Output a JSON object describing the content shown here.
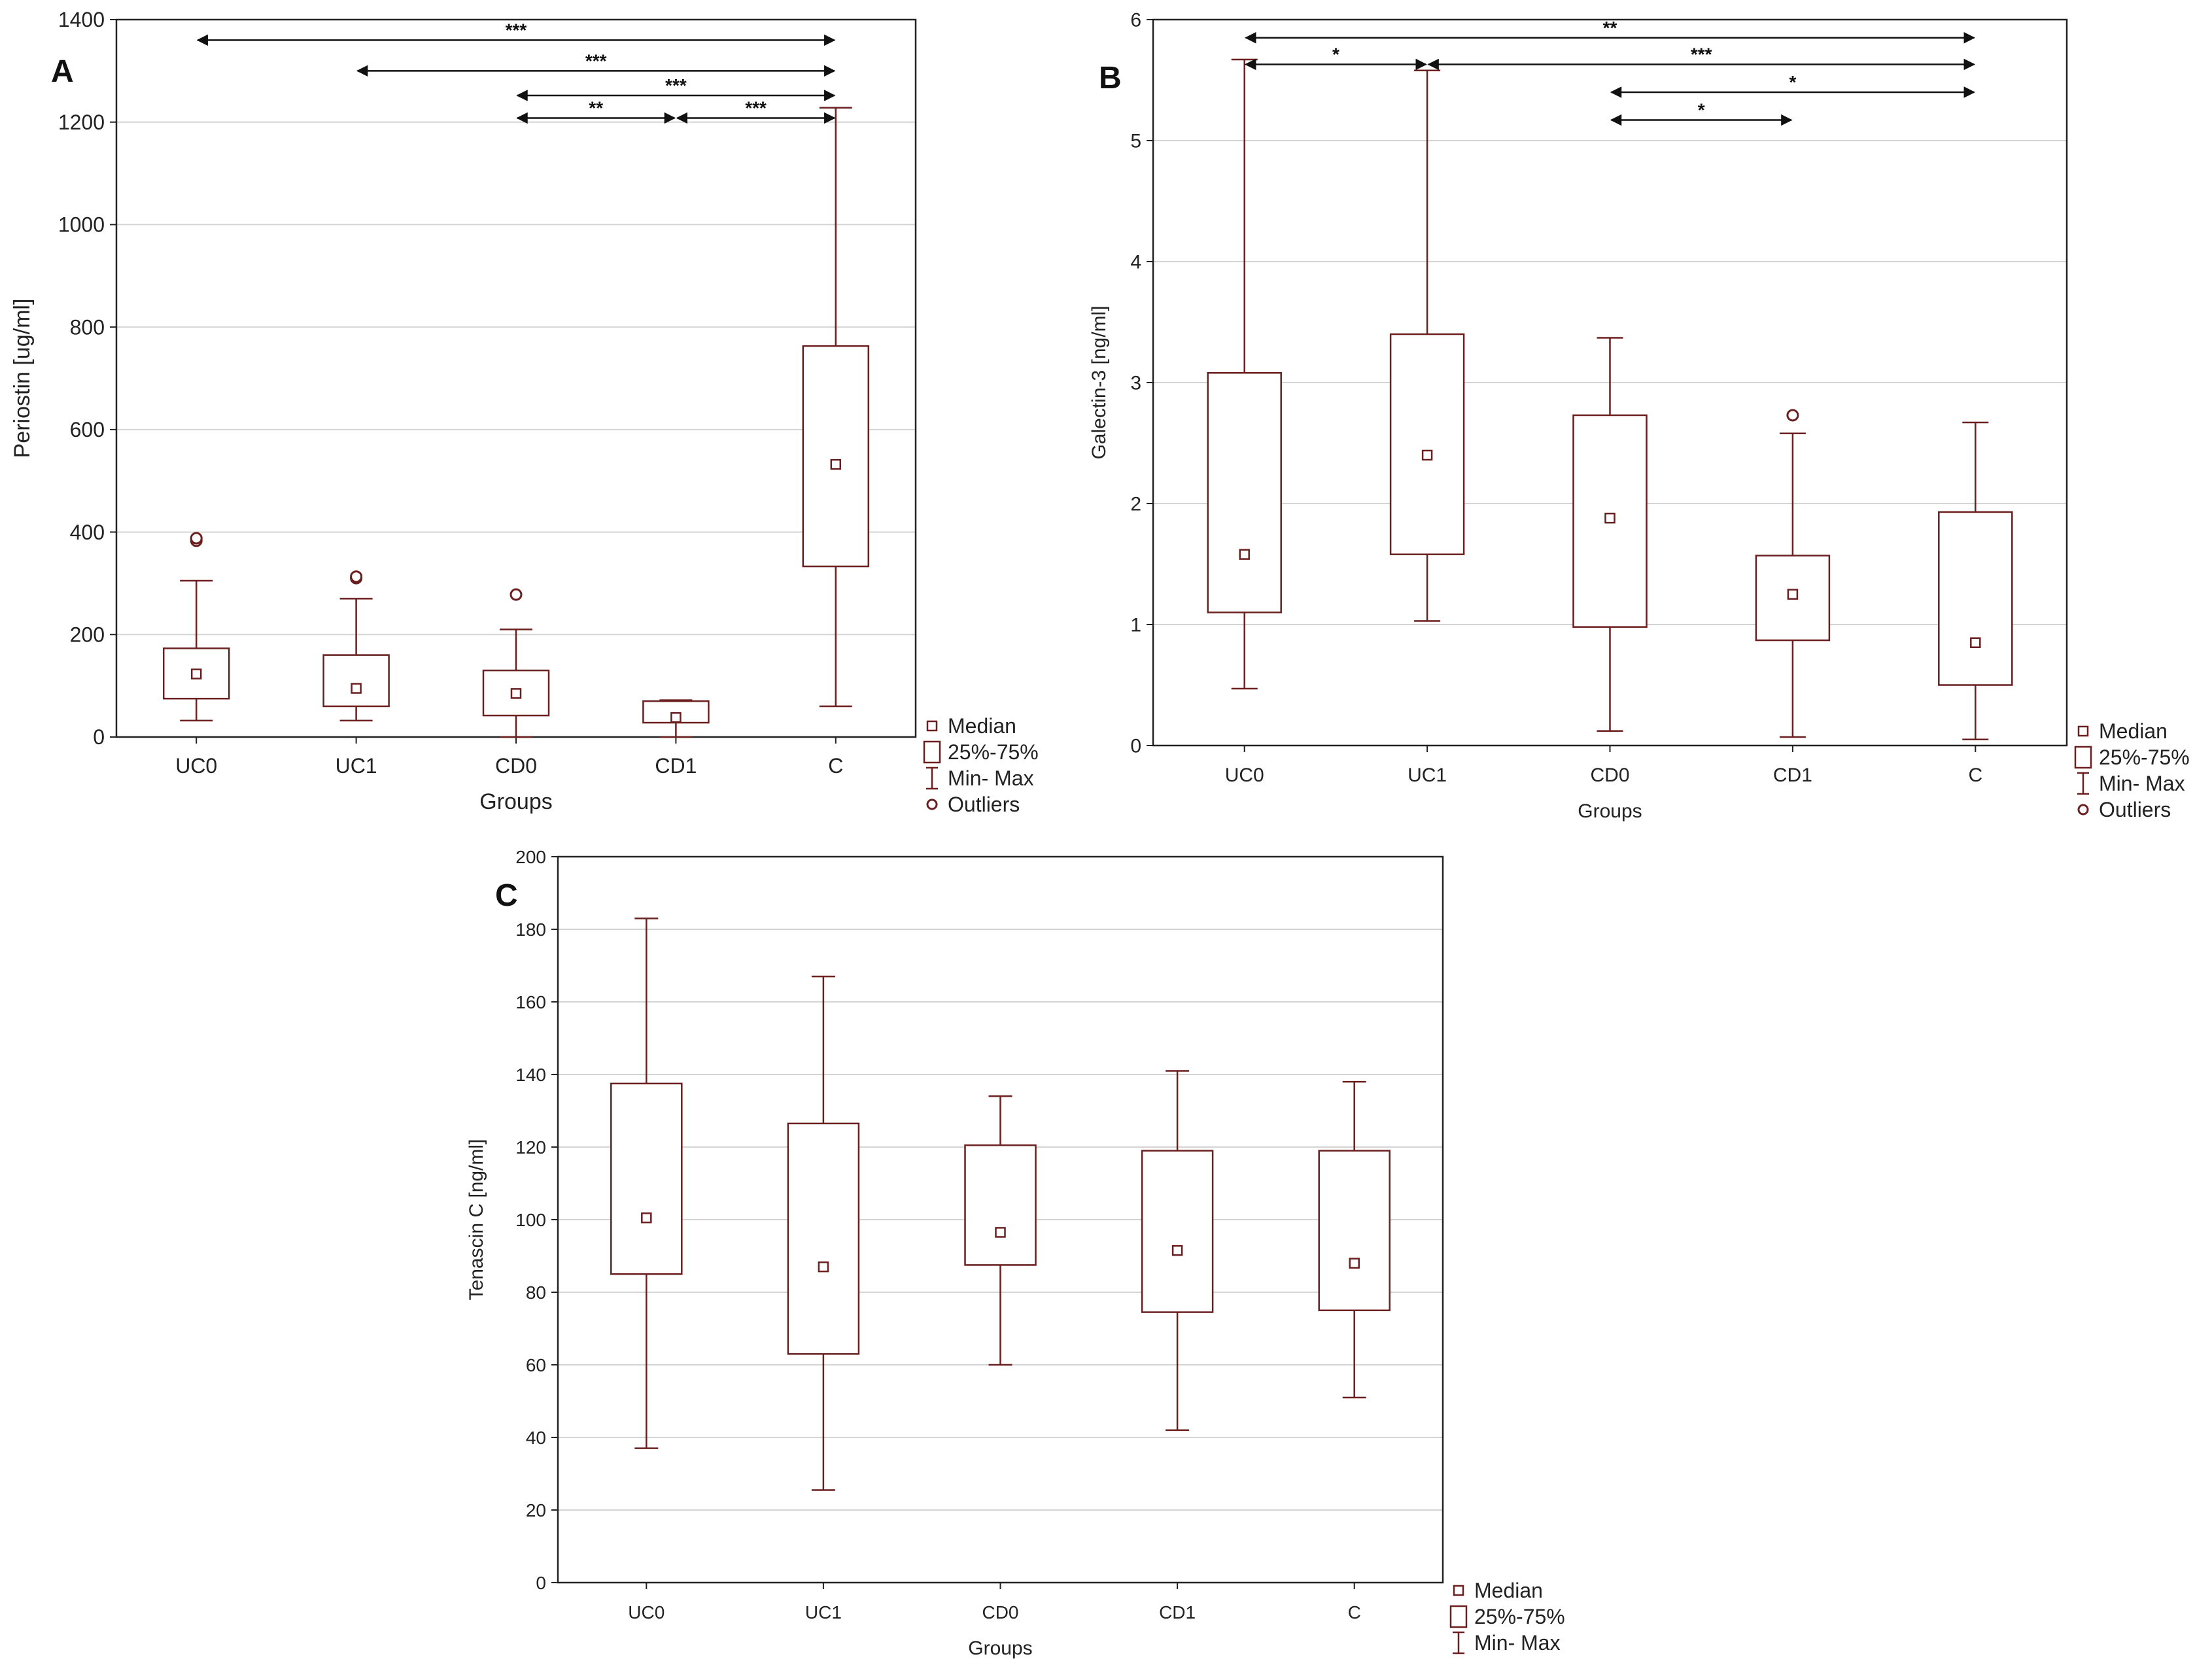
{
  "colors": {
    "box": "#6b1f1f",
    "grid": "#d4d4d4",
    "frame": "#222222",
    "arrow": "#111111"
  },
  "legend_labels": {
    "median": "Median",
    "iqr": "25%-75%",
    "range": "Min- Max",
    "outliers": "Outliers"
  },
  "chart_data": [
    {
      "panel": "A",
      "type": "box",
      "xlabel": "Groups",
      "ylabel": "Periostin [ug/ml]",
      "ylim": [
        0,
        1400
      ],
      "yticks": [
        0,
        200,
        400,
        600,
        800,
        1000,
        1200,
        1400
      ],
      "grid": true,
      "legend": [
        "median",
        "iqr",
        "range",
        "outliers"
      ],
      "categories": [
        "UC0",
        "UC1",
        "CD0",
        "CD1",
        "C"
      ],
      "boxes": [
        {
          "min": 32,
          "q1": 75,
          "median": 123,
          "q3": 173,
          "max": 305,
          "outliers": [
            383,
            388
          ]
        },
        {
          "min": 32,
          "q1": 60,
          "median": 95,
          "q3": 160,
          "max": 270,
          "outliers": [
            310,
            313
          ]
        },
        {
          "min": 0,
          "q1": 42,
          "median": 85,
          "q3": 130,
          "max": 210,
          "outliers": [
            278
          ]
        },
        {
          "min": 0,
          "q1": 28,
          "median": 38,
          "q3": 70,
          "max": 72,
          "outliers": []
        },
        {
          "min": 60,
          "q1": 333,
          "median": 532,
          "q3": 763,
          "max": 1228,
          "outliers": []
        }
      ],
      "significance": [
        {
          "from": "UC0",
          "to": "C",
          "label": "***",
          "level": 1360
        },
        {
          "from": "UC1",
          "to": "C",
          "label": "***",
          "level": 1300
        },
        {
          "from": "CD0",
          "to": "C",
          "label": "***",
          "level": 1252
        },
        {
          "from": "CD0",
          "to": "CD1",
          "label": "**",
          "level": 1208
        },
        {
          "from": "CD1",
          "to": "C",
          "label": "***",
          "level": 1208
        }
      ]
    },
    {
      "panel": "B",
      "type": "box",
      "xlabel": "Groups",
      "ylabel": "Galectin-3 [ng/ml]",
      "ylim": [
        0,
        6
      ],
      "yticks": [
        0,
        1,
        2,
        3,
        4,
        5,
        6
      ],
      "grid": true,
      "legend": [
        "median",
        "iqr",
        "range",
        "outliers"
      ],
      "categories": [
        "UC0",
        "UC1",
        "CD0",
        "CD1",
        "C"
      ],
      "boxes": [
        {
          "min": 0.47,
          "q1": 1.1,
          "median": 1.58,
          "q3": 3.08,
          "max": 5.67,
          "outliers": []
        },
        {
          "min": 1.03,
          "q1": 1.58,
          "median": 2.4,
          "q3": 3.4,
          "max": 5.58,
          "outliers": []
        },
        {
          "min": 0.12,
          "q1": 0.98,
          "median": 1.88,
          "q3": 2.73,
          "max": 3.37,
          "outliers": []
        },
        {
          "min": 0.07,
          "q1": 0.87,
          "median": 1.25,
          "q3": 1.57,
          "max": 2.58,
          "outliers": [
            2.73
          ]
        },
        {
          "min": 0.05,
          "q1": 0.5,
          "median": 0.85,
          "q3": 1.93,
          "max": 2.67,
          "outliers": []
        }
      ],
      "significance": [
        {
          "from": "UC0",
          "to": "C",
          "label": "**",
          "level": 5.85
        },
        {
          "from": "UC0",
          "to": "UC1",
          "label": "*",
          "level": 5.63
        },
        {
          "from": "UC1",
          "to": "C",
          "label": "***",
          "level": 5.63
        },
        {
          "from": "CD0",
          "to": "C",
          "label": "*",
          "level": 5.4
        },
        {
          "from": "CD0",
          "to": "CD1",
          "label": "*",
          "level": 5.17
        }
      ]
    },
    {
      "panel": "C",
      "type": "box",
      "xlabel": "Groups",
      "ylabel": "Tenascin C [ng/ml]",
      "ylim": [
        0,
        200
      ],
      "yticks": [
        0,
        20,
        40,
        60,
        80,
        100,
        120,
        140,
        160,
        180,
        200
      ],
      "grid": true,
      "legend": [
        "median",
        "iqr",
        "range"
      ],
      "categories": [
        "UC0",
        "UC1",
        "CD0",
        "CD1",
        "C"
      ],
      "boxes": [
        {
          "min": 37,
          "q1": 85,
          "median": 100.5,
          "q3": 137.5,
          "max": 183,
          "outliers": []
        },
        {
          "min": 25.5,
          "q1": 63,
          "median": 87,
          "q3": 126.5,
          "max": 167,
          "outliers": []
        },
        {
          "min": 60,
          "q1": 87.5,
          "median": 96.5,
          "q3": 120.5,
          "max": 134,
          "outliers": []
        },
        {
          "min": 42,
          "q1": 74.5,
          "median": 91.5,
          "q3": 119,
          "max": 141,
          "outliers": []
        },
        {
          "min": 51,
          "q1": 75,
          "median": 88,
          "q3": 119,
          "max": 138,
          "outliers": []
        }
      ],
      "significance": []
    }
  ]
}
